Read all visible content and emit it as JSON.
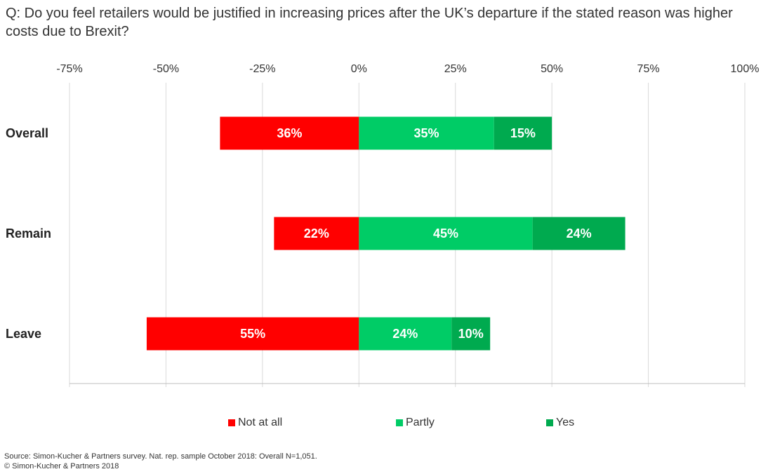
{
  "title": "Q: Do you feel retailers would be justified in increasing prices after the UK’s departure if the stated reason was higher costs due to Brexit?",
  "footer": {
    "source": "Source: Simon-Kucher & Partners survey. Nat. rep. sample October 2018: Overall N=1,051.",
    "copyright": "© Simon-Kucher & Partners 2018"
  },
  "colors": {
    "not_at_all": "#ff0000",
    "partly": "#00cc66",
    "yes": "#00aa4f",
    "grid": "#d9d9d9",
    "axis": "#bfbfbf"
  },
  "chart_data": {
    "type": "bar",
    "orientation": "horizontal",
    "stacked": true,
    "diverging": true,
    "categories": [
      "Overall",
      "Remain",
      "Leave"
    ],
    "series": [
      {
        "name": "Not at all",
        "key": "not_at_all",
        "values": [
          36,
          22,
          55
        ],
        "labels": [
          "36%",
          "22%",
          "55%"
        ],
        "direction": "negative"
      },
      {
        "name": "Partly",
        "key": "partly",
        "values": [
          35,
          45,
          24
        ],
        "labels": [
          "35%",
          "45%",
          "24%"
        ],
        "direction": "positive"
      },
      {
        "name": "Yes",
        "key": "yes",
        "values": [
          15,
          24,
          10
        ],
        "labels": [
          "15%",
          "24%",
          "10%"
        ],
        "direction": "positive"
      }
    ],
    "xlim": [
      -75,
      100
    ],
    "xticks": [
      -75,
      -50,
      -25,
      0,
      25,
      50,
      75,
      100
    ],
    "xtick_labels": [
      "-75%",
      "-50%",
      "-25%",
      "0%",
      "25%",
      "50%",
      "75%",
      "100%"
    ],
    "xaxis_position": "top",
    "grid": true,
    "legend": [
      "Not at all",
      "Partly",
      "Yes"
    ],
    "legend_position": "bottom"
  }
}
